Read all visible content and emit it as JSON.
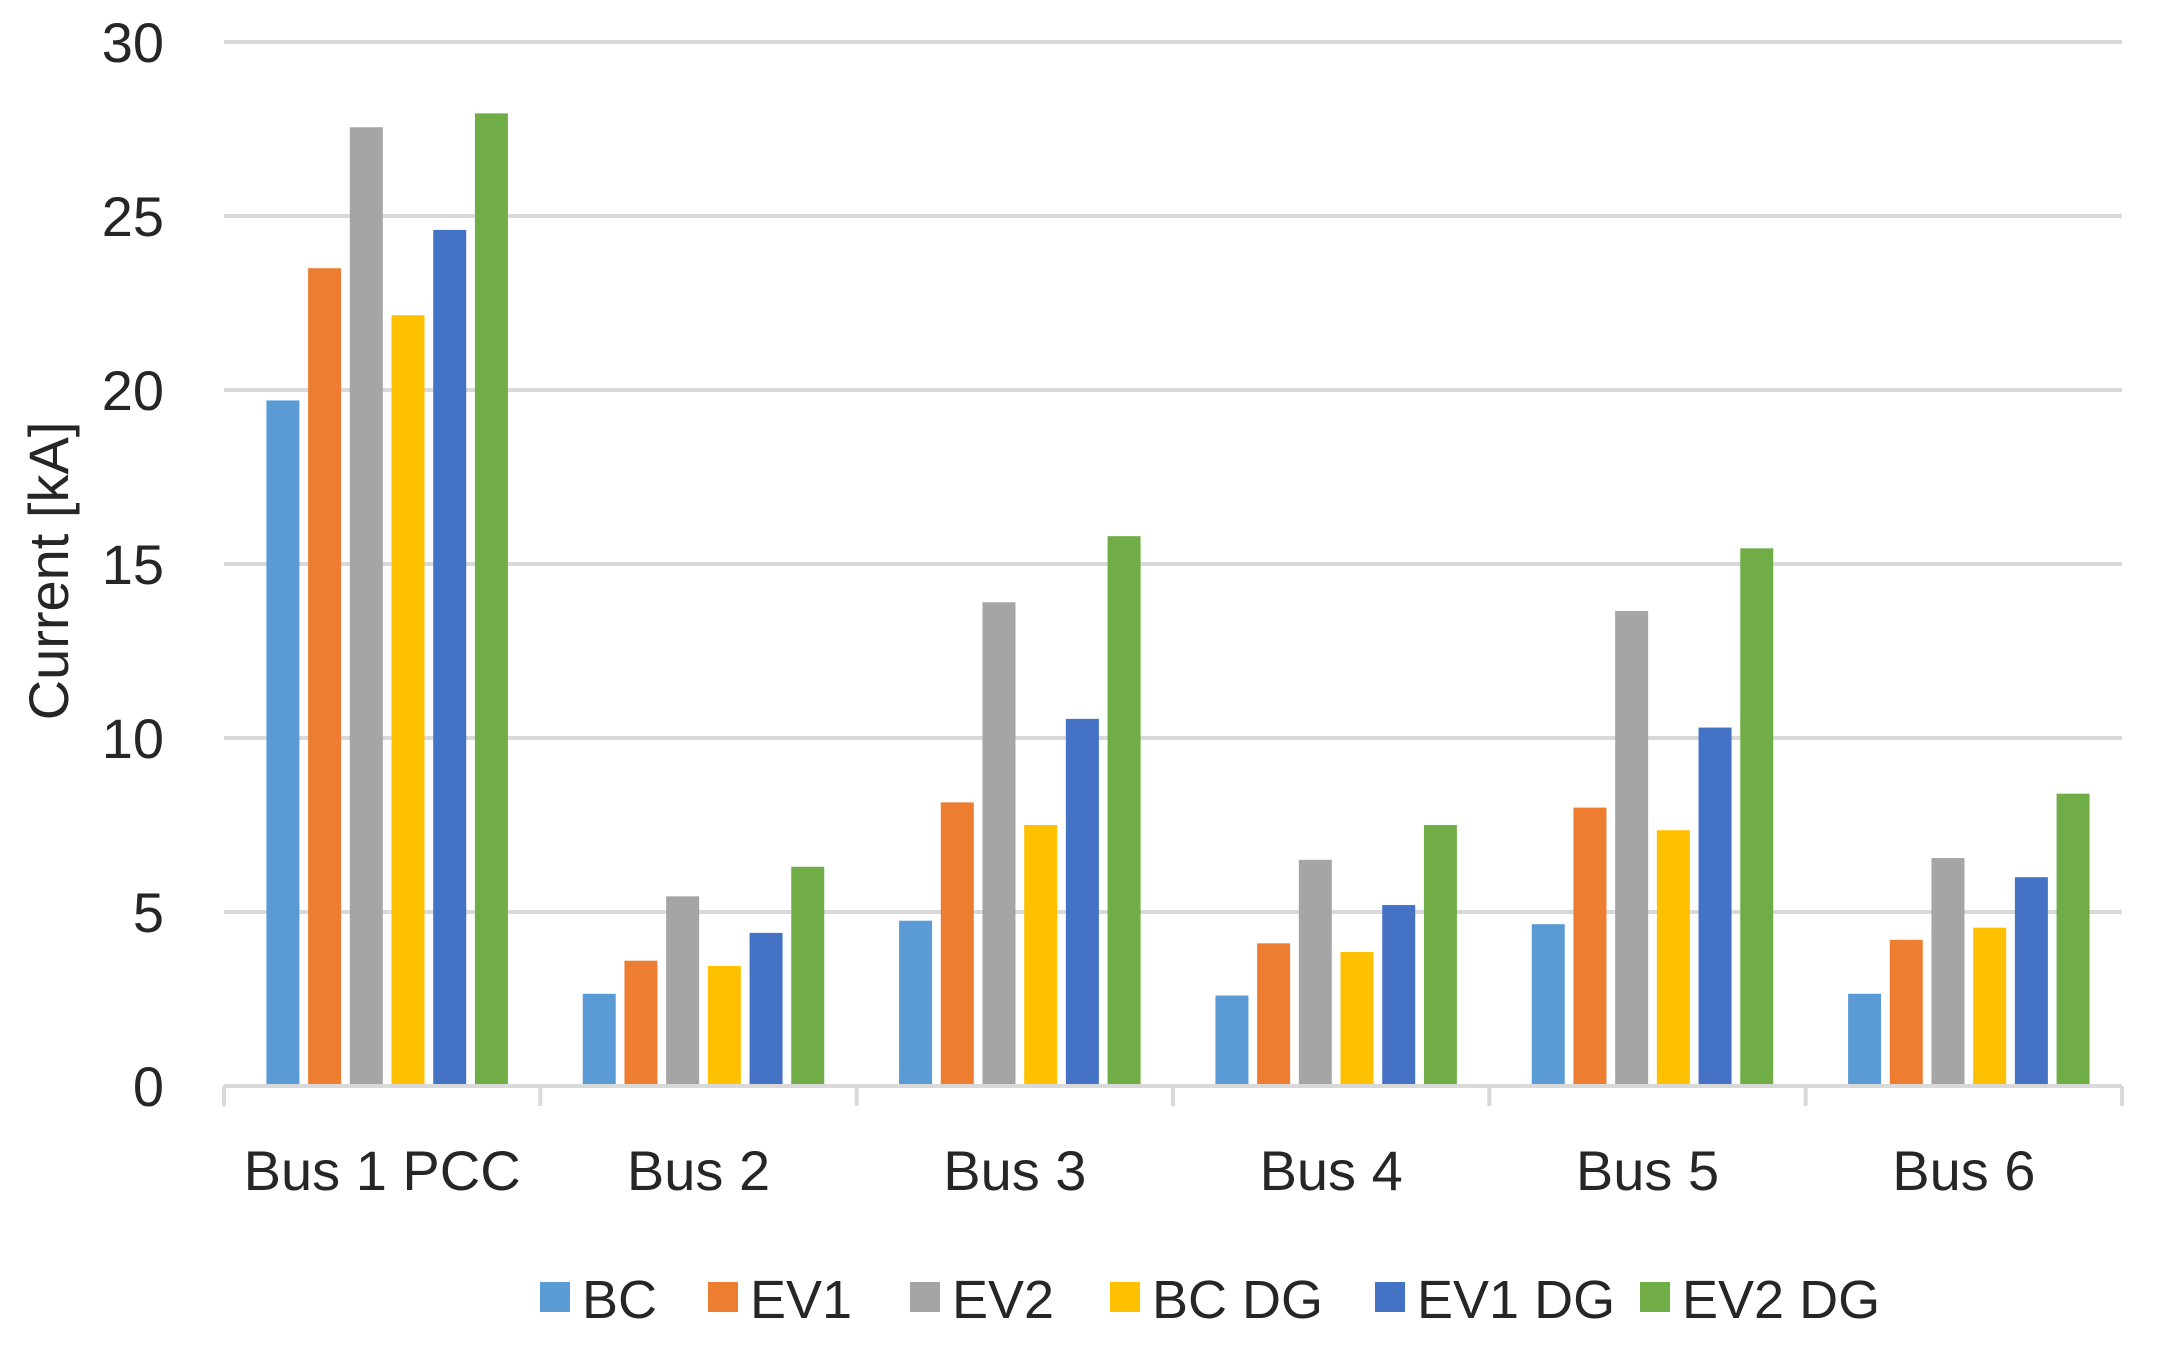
{
  "chart_data": {
    "type": "bar",
    "title": "",
    "xlabel": "",
    "ylabel": "Current [kA]",
    "ylim": [
      0,
      30
    ],
    "yticks": [
      "0",
      "5",
      "10",
      "15",
      "20",
      "25",
      "30"
    ],
    "grid": true,
    "legend_position": "bottom",
    "categories": [
      "Bus 1 PCC",
      "Bus 2",
      "Bus 3",
      "Bus 4",
      "Bus 5",
      "Bus 6"
    ],
    "series": [
      {
        "name": "BC",
        "color": "#5B9BD5",
        "values": [
          19.7,
          2.65,
          4.75,
          2.6,
          4.65,
          2.65
        ]
      },
      {
        "name": "EV1",
        "color": "#ED7D31",
        "values": [
          23.5,
          3.6,
          8.15,
          4.1,
          8.0,
          4.2
        ]
      },
      {
        "name": "EV2",
        "color": "#A5A5A5",
        "values": [
          27.55,
          5.45,
          13.9,
          6.5,
          13.65,
          6.55
        ]
      },
      {
        "name": "BC DG",
        "color": "#FFC000",
        "values": [
          22.15,
          3.45,
          7.5,
          3.85,
          7.35,
          4.55
        ]
      },
      {
        "name": "EV1 DG",
        "color": "#4472C4",
        "values": [
          24.6,
          4.4,
          10.55,
          5.2,
          10.3,
          6.0
        ]
      },
      {
        "name": "EV2 DG",
        "color": "#70AD47",
        "values": [
          27.95,
          6.3,
          15.8,
          7.5,
          15.45,
          8.4
        ]
      }
    ]
  }
}
